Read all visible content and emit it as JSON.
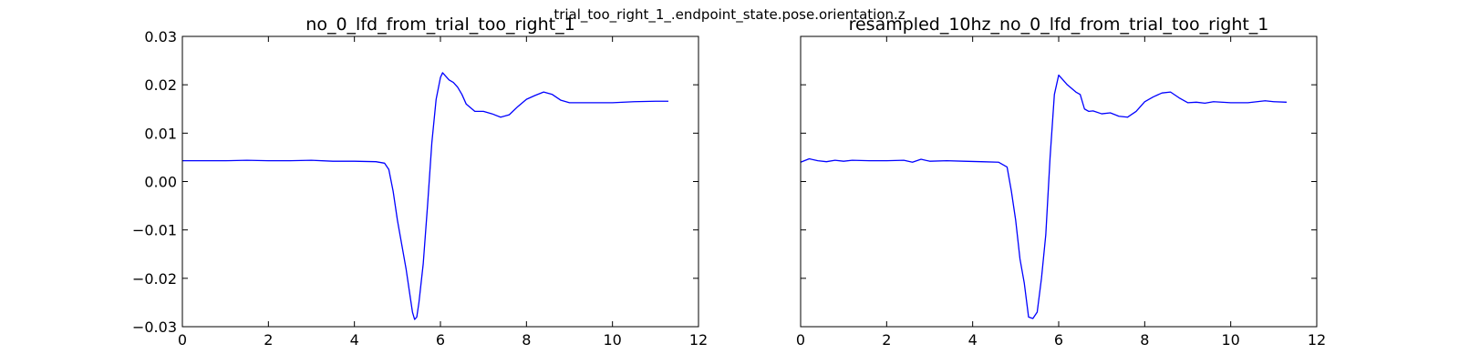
{
  "figure": {
    "suptitle": "trial_too_right_1_.endpoint_state.pose.orientation.z",
    "line_color": "#0000ff"
  },
  "chart_data": [
    {
      "type": "line",
      "title": "no_0_lfd_from_trial_too_right_1",
      "xlabel": "",
      "ylabel": "",
      "xlim": [
        0,
        12
      ],
      "ylim": [
        -0.03,
        0.03
      ],
      "xticks": [
        "0",
        "2",
        "4",
        "6",
        "8",
        "10",
        "12"
      ],
      "yticks": [
        "−0.03",
        "−0.02",
        "−0.01",
        "0.00",
        "0.01",
        "0.02",
        "0.03"
      ],
      "grid": false,
      "series": [
        {
          "x": [
            0,
            0.5,
            1,
            1.5,
            2,
            2.5,
            3,
            3.5,
            4,
            4.5,
            4.7,
            4.8,
            4.9,
            5.0,
            5.1,
            5.2,
            5.3,
            5.35,
            5.4,
            5.45,
            5.5,
            5.6,
            5.7,
            5.8,
            5.9,
            6.0,
            6.05,
            6.1,
            6.2,
            6.3,
            6.4,
            6.5,
            6.6,
            6.8,
            7.0,
            7.2,
            7.4,
            7.6,
            7.8,
            8.0,
            8.2,
            8.4,
            8.6,
            8.8,
            9.0,
            9.5,
            10.0,
            10.5,
            11.0,
            11.3
          ],
          "y": [
            0.0043,
            0.0043,
            0.0043,
            0.0044,
            0.0043,
            0.0043,
            0.0044,
            0.0042,
            0.0042,
            0.0041,
            0.0038,
            0.0025,
            -0.002,
            -0.008,
            -0.013,
            -0.018,
            -0.024,
            -0.027,
            -0.0285,
            -0.028,
            -0.025,
            -0.017,
            -0.005,
            0.008,
            0.017,
            0.0215,
            0.0225,
            0.022,
            0.021,
            0.0205,
            0.0195,
            0.018,
            0.016,
            0.0145,
            0.0145,
            0.014,
            0.0133,
            0.0138,
            0.0155,
            0.017,
            0.0178,
            0.0185,
            0.018,
            0.0168,
            0.0163,
            0.0163,
            0.0163,
            0.0165,
            0.0166,
            0.0166
          ]
        }
      ]
    },
    {
      "type": "line",
      "title": "resampled_10hz_no_0_lfd_from_trial_too_right_1",
      "xlabel": "",
      "ylabel": "",
      "xlim": [
        0,
        12
      ],
      "ylim": [
        -0.03,
        0.03
      ],
      "xticks": [
        "0",
        "2",
        "4",
        "6",
        "8",
        "10",
        "12"
      ],
      "yticks": [],
      "grid": false,
      "series": [
        {
          "x": [
            0,
            0.2,
            0.4,
            0.6,
            0.8,
            1.0,
            1.2,
            1.6,
            2.0,
            2.4,
            2.6,
            2.8,
            3.0,
            3.4,
            3.8,
            4.2,
            4.6,
            4.8,
            4.9,
            5.0,
            5.1,
            5.2,
            5.3,
            5.4,
            5.5,
            5.6,
            5.7,
            5.8,
            5.9,
            6.0,
            6.1,
            6.2,
            6.4,
            6.5,
            6.6,
            6.7,
            6.8,
            7.0,
            7.2,
            7.4,
            7.6,
            7.8,
            8.0,
            8.2,
            8.4,
            8.6,
            8.8,
            9.0,
            9.2,
            9.4,
            9.6,
            10.0,
            10.4,
            10.8,
            11.0,
            11.3
          ],
          "y": [
            0.004,
            0.0047,
            0.0043,
            0.0041,
            0.0044,
            0.0042,
            0.0044,
            0.0043,
            0.0043,
            0.0044,
            0.004,
            0.0046,
            0.0042,
            0.0043,
            0.0042,
            0.0041,
            0.004,
            0.003,
            -0.002,
            -0.008,
            -0.016,
            -0.021,
            -0.028,
            -0.0283,
            -0.027,
            -0.02,
            -0.011,
            0.005,
            0.018,
            0.022,
            0.021,
            0.02,
            0.0185,
            0.018,
            0.015,
            0.0145,
            0.0146,
            0.014,
            0.0142,
            0.0135,
            0.0133,
            0.0145,
            0.0165,
            0.0175,
            0.0183,
            0.0185,
            0.0173,
            0.0163,
            0.0164,
            0.0162,
            0.0165,
            0.0163,
            0.0163,
            0.0167,
            0.0165,
            0.0164
          ]
        }
      ]
    }
  ]
}
